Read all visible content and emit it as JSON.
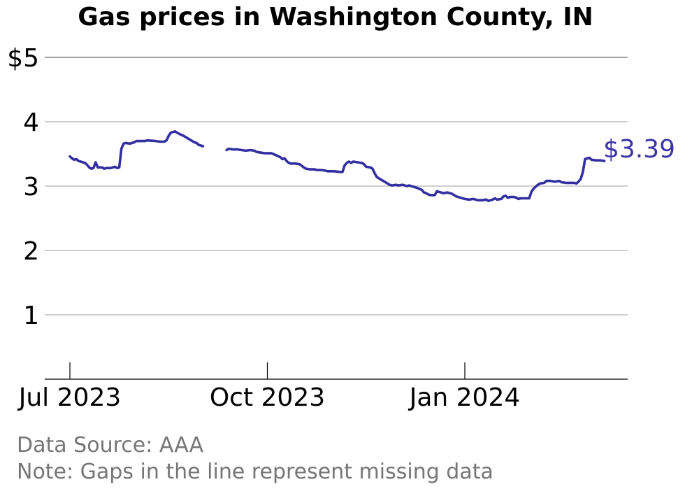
{
  "chart_data": {
    "type": "line",
    "title": "Gas prices in Washington County, IN",
    "xlabel": "",
    "ylabel": "",
    "ylim": [
      0,
      5
    ],
    "y_ticks": [
      {
        "value": 1,
        "label": "1"
      },
      {
        "value": 2,
        "label": "2"
      },
      {
        "value": 3,
        "label": "3"
      },
      {
        "value": 4,
        "label": "4"
      },
      {
        "value": 5,
        "label": "$5"
      }
    ],
    "x_ticks": [
      {
        "date": "2023-07-01",
        "label": "Jul 2023"
      },
      {
        "date": "2023-10-01",
        "label": "Oct 2023"
      },
      {
        "date": "2024-01-01",
        "label": "Jan 2024"
      }
    ],
    "xlim": [
      "2023-06-20",
      "2024-03-31"
    ],
    "grid": true,
    "line_color": "#332fa0",
    "end_label": "$3.39",
    "series": [
      {
        "segments": [
          [
            [
              "2023-07-01",
              3.46
            ],
            [
              "2023-07-02",
              3.43
            ],
            [
              "2023-07-03",
              3.41
            ],
            [
              "2023-07-04",
              3.42
            ],
            [
              "2023-07-05",
              3.39
            ],
            [
              "2023-07-06",
              3.38
            ],
            [
              "2023-07-08",
              3.36
            ],
            [
              "2023-07-09",
              3.33
            ],
            [
              "2023-07-10",
              3.29
            ],
            [
              "2023-07-11",
              3.27
            ],
            [
              "2023-07-12",
              3.28
            ],
            [
              "2023-07-13",
              3.37
            ],
            [
              "2023-07-14",
              3.29
            ],
            [
              "2023-07-16",
              3.29
            ],
            [
              "2023-07-17",
              3.27
            ],
            [
              "2023-07-18",
              3.28
            ],
            [
              "2023-07-20",
              3.28
            ],
            [
              "2023-07-22",
              3.3
            ],
            [
              "2023-07-23",
              3.28
            ],
            [
              "2023-07-24",
              3.29
            ],
            [
              "2023-07-25",
              3.58
            ],
            [
              "2023-07-26",
              3.66
            ],
            [
              "2023-07-27",
              3.67
            ],
            [
              "2023-07-29",
              3.66
            ],
            [
              "2023-07-31",
              3.68
            ],
            [
              "2023-08-01",
              3.7
            ],
            [
              "2023-08-05",
              3.7
            ],
            [
              "2023-08-06",
              3.71
            ],
            [
              "2023-08-10",
              3.7
            ],
            [
              "2023-08-12",
              3.69
            ],
            [
              "2023-08-14",
              3.69
            ],
            [
              "2023-08-15",
              3.71
            ],
            [
              "2023-08-16",
              3.78
            ],
            [
              "2023-08-17",
              3.83
            ],
            [
              "2023-08-19",
              3.85
            ],
            [
              "2023-08-21",
              3.81
            ],
            [
              "2023-08-23",
              3.78
            ],
            [
              "2023-08-25",
              3.74
            ],
            [
              "2023-08-27",
              3.7
            ],
            [
              "2023-08-28",
              3.68
            ],
            [
              "2023-08-29",
              3.67
            ],
            [
              "2023-08-30",
              3.64
            ],
            [
              "2023-08-31",
              3.63
            ],
            [
              "2023-09-01",
              3.62
            ]
          ],
          [
            [
              "2023-09-12",
              3.56
            ],
            [
              "2023-09-13",
              3.58
            ],
            [
              "2023-09-15",
              3.57
            ],
            [
              "2023-09-17",
              3.57
            ],
            [
              "2023-09-19",
              3.56
            ],
            [
              "2023-09-21",
              3.55
            ],
            [
              "2023-09-23",
              3.56
            ],
            [
              "2023-09-25",
              3.55
            ],
            [
              "2023-09-26",
              3.53
            ],
            [
              "2023-09-28",
              3.52
            ],
            [
              "2023-09-30",
              3.51
            ],
            [
              "2023-10-01",
              3.51
            ],
            [
              "2023-10-03",
              3.51
            ],
            [
              "2023-10-05",
              3.48
            ],
            [
              "2023-10-07",
              3.45
            ],
            [
              "2023-10-08",
              3.42
            ],
            [
              "2023-10-09",
              3.43
            ],
            [
              "2023-10-10",
              3.39
            ],
            [
              "2023-10-11",
              3.36
            ],
            [
              "2023-10-12",
              3.35
            ],
            [
              "2023-10-14",
              3.35
            ],
            [
              "2023-10-16",
              3.34
            ],
            [
              "2023-10-18",
              3.29
            ],
            [
              "2023-10-19",
              3.27
            ],
            [
              "2023-10-21",
              3.26
            ],
            [
              "2023-10-23",
              3.26
            ],
            [
              "2023-10-24",
              3.25
            ],
            [
              "2023-10-26",
              3.25
            ],
            [
              "2023-10-28",
              3.24
            ],
            [
              "2023-10-29",
              3.23
            ],
            [
              "2023-11-01",
              3.23
            ],
            [
              "2023-11-04",
              3.22
            ],
            [
              "2023-11-05",
              3.22
            ],
            [
              "2023-11-06",
              3.32
            ],
            [
              "2023-11-07",
              3.36
            ],
            [
              "2023-11-08",
              3.38
            ],
            [
              "2023-11-09",
              3.36
            ],
            [
              "2023-11-10",
              3.38
            ],
            [
              "2023-11-12",
              3.37
            ],
            [
              "2023-11-14",
              3.36
            ],
            [
              "2023-11-15",
              3.34
            ],
            [
              "2023-11-16",
              3.3
            ],
            [
              "2023-11-18",
              3.29
            ],
            [
              "2023-11-19",
              3.27
            ],
            [
              "2023-11-20",
              3.2
            ],
            [
              "2023-11-21",
              3.14
            ],
            [
              "2023-11-23",
              3.1
            ],
            [
              "2023-11-25",
              3.06
            ],
            [
              "2023-11-27",
              3.02
            ],
            [
              "2023-11-28",
              3.01
            ],
            [
              "2023-11-30",
              3.02
            ],
            [
              "2023-12-01",
              3.01
            ],
            [
              "2023-12-03",
              3.02
            ],
            [
              "2023-12-05",
              3.0
            ],
            [
              "2023-12-06",
              3.01
            ],
            [
              "2023-12-08",
              2.99
            ],
            [
              "2023-12-10",
              2.97
            ],
            [
              "2023-12-12",
              2.94
            ],
            [
              "2023-12-13",
              2.9
            ],
            [
              "2023-12-14",
              2.89
            ],
            [
              "2023-12-15",
              2.87
            ],
            [
              "2023-12-16",
              2.86
            ],
            [
              "2023-12-18",
              2.86
            ],
            [
              "2023-12-19",
              2.92
            ],
            [
              "2023-12-20",
              2.91
            ],
            [
              "2023-12-22",
              2.89
            ],
            [
              "2023-12-24",
              2.9
            ],
            [
              "2023-12-26",
              2.88
            ],
            [
              "2023-12-28",
              2.84
            ],
            [
              "2023-12-30",
              2.82
            ],
            [
              "2024-01-01",
              2.8
            ],
            [
              "2024-01-03",
              2.79
            ],
            [
              "2024-01-05",
              2.8
            ],
            [
              "2024-01-07",
              2.78
            ],
            [
              "2024-01-09",
              2.78
            ],
            [
              "2024-01-11",
              2.79
            ],
            [
              "2024-01-12",
              2.77
            ],
            [
              "2024-01-13",
              2.78
            ],
            [
              "2024-01-14",
              2.79
            ],
            [
              "2024-01-15",
              2.81
            ],
            [
              "2024-01-16",
              2.79
            ],
            [
              "2024-01-18",
              2.8
            ],
            [
              "2024-01-19",
              2.84
            ],
            [
              "2024-01-20",
              2.85
            ],
            [
              "2024-01-21",
              2.82
            ],
            [
              "2024-01-22",
              2.83
            ],
            [
              "2024-01-24",
              2.83
            ],
            [
              "2024-01-25",
              2.82
            ],
            [
              "2024-01-26",
              2.8
            ],
            [
              "2024-01-27",
              2.81
            ],
            [
              "2024-01-29",
              2.81
            ],
            [
              "2024-01-31",
              2.81
            ],
            [
              "2024-02-01",
              2.91
            ],
            [
              "2024-02-02",
              2.96
            ],
            [
              "2024-02-04",
              3.02
            ],
            [
              "2024-02-05",
              3.04
            ],
            [
              "2024-02-07",
              3.05
            ],
            [
              "2024-02-08",
              3.08
            ],
            [
              "2024-02-10",
              3.08
            ],
            [
              "2024-02-12",
              3.07
            ],
            [
              "2024-02-14",
              3.08
            ],
            [
              "2024-02-15",
              3.06
            ],
            [
              "2024-02-17",
              3.05
            ],
            [
              "2024-02-19",
              3.05
            ],
            [
              "2024-02-21",
              3.05
            ],
            [
              "2024-02-22",
              3.04
            ],
            [
              "2024-02-23",
              3.07
            ],
            [
              "2024-02-24",
              3.11
            ],
            [
              "2024-02-25",
              3.22
            ],
            [
              "2024-02-26",
              3.42
            ],
            [
              "2024-02-28",
              3.44
            ],
            [
              "2024-02-29",
              3.41
            ],
            [
              "2024-03-02",
              3.4
            ],
            [
              "2024-03-04",
              3.4
            ],
            [
              "2024-03-06",
              3.39
            ]
          ]
        ]
      }
    ]
  },
  "footer": {
    "source": "Data Source: AAA",
    "note": "Note: Gaps in the line represent missing data"
  }
}
